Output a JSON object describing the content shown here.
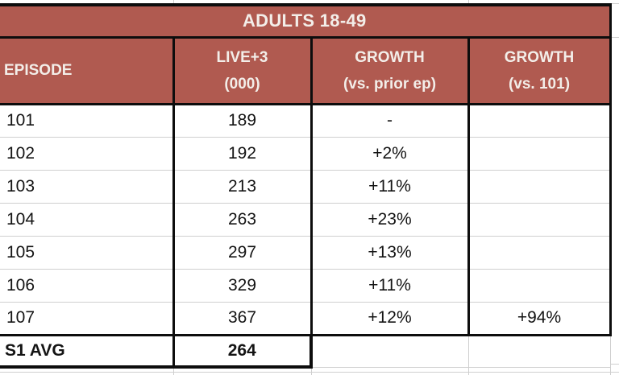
{
  "sheet": {
    "title": "ADULTS 18-49",
    "columns": [
      {
        "line1": "EPISODE",
        "line2": ""
      },
      {
        "line1": "LIVE+3",
        "line2": "(000)"
      },
      {
        "line1": "GROWTH",
        "line2": "(vs. prior ep)"
      },
      {
        "line1": "GROWTH",
        "line2": "(vs. 101)"
      }
    ],
    "rows": [
      {
        "episode": "101",
        "live3": "189",
        "growth_prior": "-",
        "growth_vs_101": ""
      },
      {
        "episode": "102",
        "live3": "192",
        "growth_prior": "+2%",
        "growth_vs_101": ""
      },
      {
        "episode": "103",
        "live3": "213",
        "growth_prior": "+11%",
        "growth_vs_101": ""
      },
      {
        "episode": "104",
        "live3": "263",
        "growth_prior": "+23%",
        "growth_vs_101": ""
      },
      {
        "episode": "105",
        "live3": "297",
        "growth_prior": "+13%",
        "growth_vs_101": ""
      },
      {
        "episode": "106",
        "live3": "329",
        "growth_prior": "+11%",
        "growth_vs_101": ""
      },
      {
        "episode": "107",
        "live3": "367",
        "growth_prior": "+12%",
        "growth_vs_101": "+94%"
      }
    ],
    "summary": {
      "label": "S1 AVG",
      "live3": "264",
      "growth_prior": "",
      "growth_vs_101": ""
    }
  },
  "colors": {
    "header_bg": "#B05A50",
    "header_text": "#F3EEE9",
    "positive_green": "#4FA45E",
    "gridline_gray": "#CFCFCF",
    "table_border": "#0D0D0D"
  }
}
